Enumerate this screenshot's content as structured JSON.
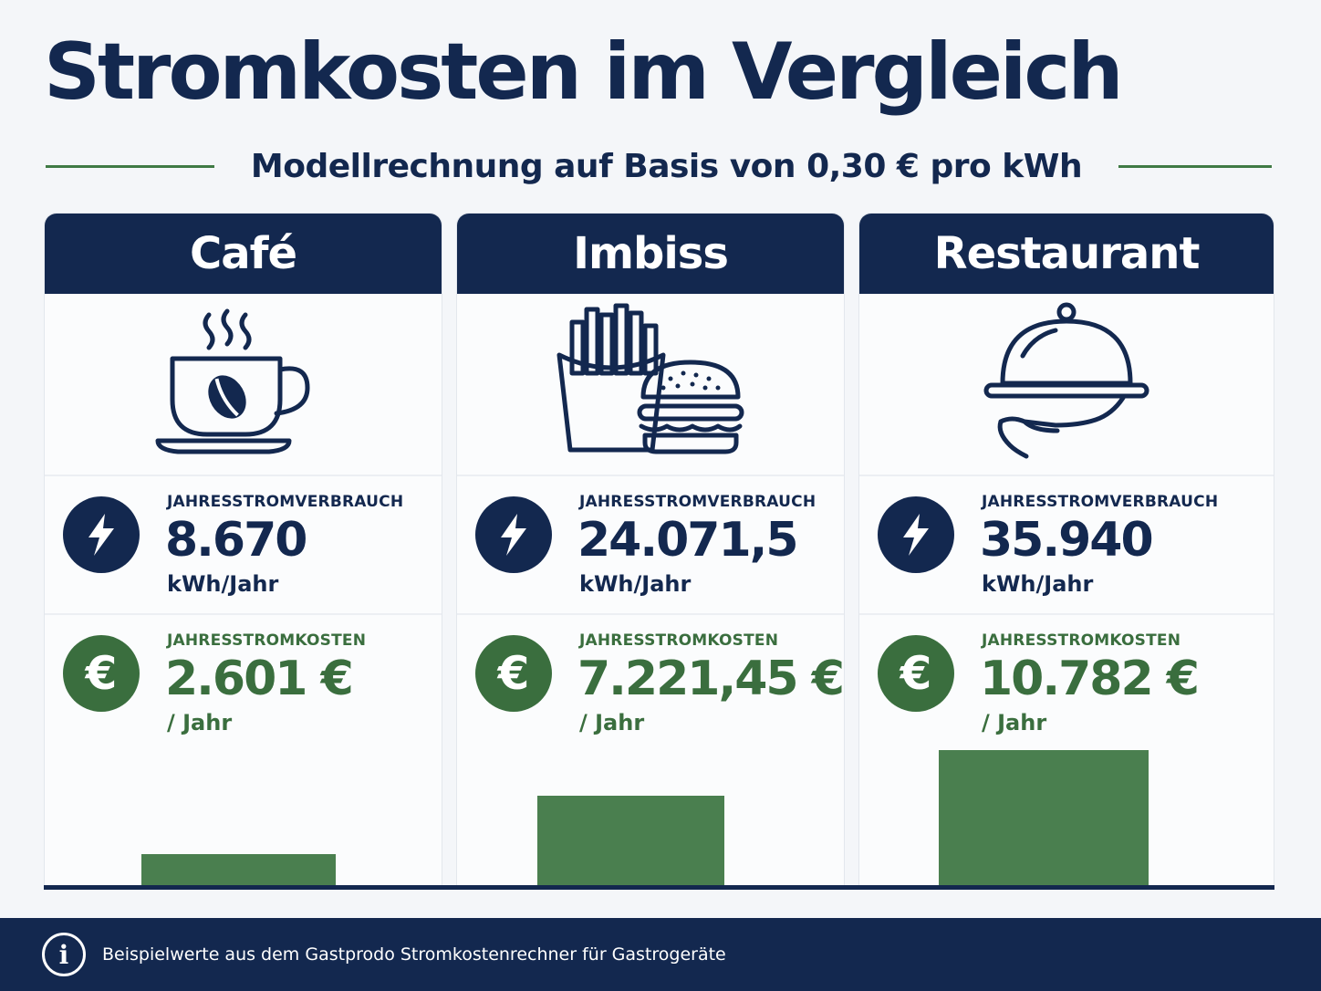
{
  "title": "Stromkosten im Vergleich",
  "subtitle": "Modellrechnung auf Basis von 0,30 € pro kWh",
  "colors": {
    "navy": "#13284f",
    "green": "#3a6e3e",
    "bar_green": "#4a7f4f",
    "background": "#f4f6f9"
  },
  "chart_data": {
    "type": "bar",
    "title": "Stromkosten im Vergleich",
    "subtitle": "Modellrechnung auf Basis von 0,30 € pro kWh",
    "categories": [
      "Café",
      "Imbiss",
      "Restaurant"
    ],
    "series": [
      {
        "name": "JAHRESSTROMKOSTEN",
        "values": [
          2601,
          7221.45,
          10782
        ]
      }
    ],
    "energy_kwh_per_year": [
      8670,
      24071.5,
      35940
    ],
    "grid": false,
    "legend": "none"
  },
  "cards": [
    {
      "name": "Café",
      "icon": "coffee-cup-icon",
      "energy": {
        "label": "JAHRESSTROMVERBRAUCH",
        "value": "8.670",
        "unit": "kWh/Jahr",
        "icon": "lightning-icon"
      },
      "cost": {
        "label": "JAHRESSTROMKOSTEN",
        "value": "2.601 €",
        "unit": "/ Jahr",
        "icon": "euro-icon"
      }
    },
    {
      "name": "Imbiss",
      "icon": "fries-burger-icon",
      "energy": {
        "label": "JAHRESSTROMVERBRAUCH",
        "value": "24.071,5",
        "unit": "kWh/Jahr",
        "icon": "lightning-icon"
      },
      "cost": {
        "label": "JAHRESSTROMKOSTEN",
        "value": "7.221,45 €",
        "unit": "/ Jahr",
        "icon": "euro-icon"
      }
    },
    {
      "name": "Restaurant",
      "icon": "cloche-hand-icon",
      "energy": {
        "label": "JAHRESSTROMVERBRAUCH",
        "value": "35.940",
        "unit": "kWh/Jahr",
        "icon": "lightning-icon"
      },
      "cost": {
        "label": "JAHRESSTROMKOSTEN",
        "value": "10.782 €",
        "unit": "/ Jahr",
        "icon": "euro-icon"
      }
    }
  ],
  "euro_glyph": "€",
  "footer": {
    "icon": "info-icon",
    "info_glyph": "i",
    "text": "Beispielwerte aus dem Gastprodo Stromkostenrechner für Gastrogeräte"
  }
}
